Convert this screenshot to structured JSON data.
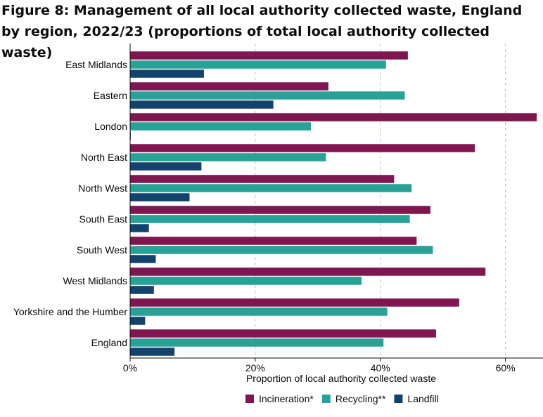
{
  "chart_data": {
    "type": "bar",
    "orientation": "horizontal",
    "title": "Figure 8: Management of all local authority collected waste, England by region, 2022/23 (proportions of total local authority collected waste)",
    "xlabel": "Proportion of local authority collected waste",
    "ylabel": "",
    "xlim": [
      0,
      66
    ],
    "x_ticks": [
      0,
      20,
      40,
      60
    ],
    "x_tick_labels": [
      "0%",
      "20%",
      "40%",
      "60%"
    ],
    "grid": "vertical dashed",
    "legend_position": "bottom",
    "categories": [
      "East Midlands",
      "Eastern",
      "London",
      "North East",
      "North West",
      "South East",
      "South West",
      "West Midlands",
      "Yorkshire and the Humber",
      "England"
    ],
    "series": [
      {
        "name": "Incineration*",
        "color": "#801650",
        "values": [
          44.4,
          31.7,
          65.0,
          55.1,
          42.2,
          48.0,
          45.8,
          56.8,
          52.6,
          48.9
        ]
      },
      {
        "name": "Recycling**",
        "color": "#28a197",
        "values": [
          40.9,
          43.9,
          28.9,
          31.3,
          45.0,
          44.7,
          48.4,
          37.0,
          41.1,
          40.5
        ]
      },
      {
        "name": "Landfill",
        "color": "#12436d",
        "values": [
          11.8,
          22.9,
          0.1,
          11.4,
          9.5,
          3.0,
          4.1,
          3.8,
          2.4,
          7.1
        ]
      }
    ]
  }
}
